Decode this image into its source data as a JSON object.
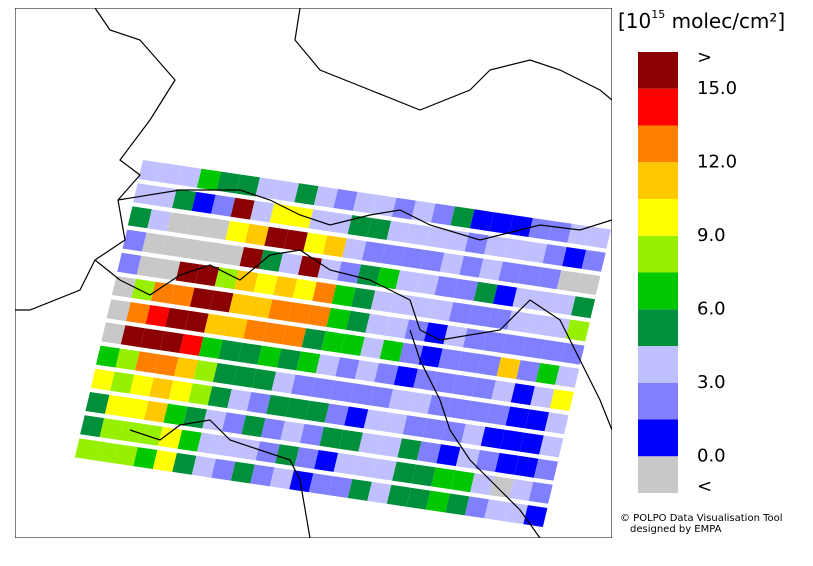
{
  "unit_prefix": "[10",
  "unit_exponent": "15",
  "unit_suffix": " molec/cm²]",
  "colorbar": {
    "bins": [
      0,
      1.5,
      3,
      4.5,
      6,
      7.5,
      9,
      10.5,
      12,
      13.5,
      15
    ],
    "colors": [
      "#0000ff",
      "#8080ff",
      "#c0c0ff",
      "#00903c",
      "#00c800",
      "#96f000",
      "#ffff00",
      "#ffc800",
      "#ff8000",
      "#ff0000"
    ],
    "under_color": "#c8c8c8",
    "over_color": "#8b0000",
    "under_label": "<",
    "over_label": ">",
    "ticks": [
      {
        "value": 0,
        "label": "0.0"
      },
      {
        "value": 3,
        "label": "3.0"
      },
      {
        "value": 6,
        "label": "6.0"
      },
      {
        "value": 9,
        "label": "9.0"
      },
      {
        "value": 12,
        "label": "12.0"
      },
      {
        "value": 15,
        "label": "15.0"
      }
    ]
  },
  "pixels": [
    [
      3.7,
      3.7,
      3.7,
      6.7,
      5.2,
      5.2,
      3.7,
      3.7,
      5.2,
      3.7,
      2.2,
      3.7,
      3.7,
      2.2,
      3.7,
      2.2,
      5.2,
      0.7,
      0.7,
      0.7,
      2.2,
      2.2,
      3.7,
      3.7
    ],
    [
      3.7,
      3.7,
      5.2,
      0.7,
      2.2,
      16,
      3.7,
      9.7,
      9.7,
      3.7,
      3.7,
      5.2,
      5.2,
      3.7,
      3.7,
      3.7,
      3.7,
      2.2,
      3.7,
      3.7,
      3.7,
      2.2,
      0.7,
      2.2
    ],
    [
      5.2,
      3.7,
      -1,
      -1,
      -1,
      9.7,
      11.2,
      16,
      16,
      9.7,
      11.2,
      3.7,
      2.2,
      2.2,
      2.2,
      2.2,
      3.7,
      2.2,
      3.7,
      2.2,
      2.2,
      2.2,
      -1,
      -1
    ],
    [
      2.2,
      -1,
      -1,
      -1,
      -1,
      -1,
      16,
      5.2,
      3.7,
      16,
      3.7,
      2.2,
      5.2,
      6.7,
      3.7,
      3.7,
      2.2,
      2.2,
      5.2,
      0.7,
      3.7,
      3.7,
      3.7,
      5.2
    ],
    [
      2.2,
      -1,
      -1,
      16,
      16,
      8.2,
      11.2,
      9.7,
      11.2,
      9.7,
      12.7,
      6.7,
      5.2,
      3.7,
      3.7,
      3.7,
      3.7,
      2.2,
      2.2,
      2.2,
      3.7,
      3.7,
      3.7,
      8.2
    ],
    [
      -1,
      8.2,
      12.7,
      12.7,
      16,
      16,
      11.2,
      11.2,
      12.7,
      12.7,
      12.7,
      6.7,
      5.2,
      3.7,
      3.7,
      2.2,
      0.7,
      3.7,
      2.2,
      2.2,
      2.2,
      2.2,
      2.2,
      2.2
    ],
    [
      -1,
      12.7,
      14.2,
      16,
      16,
      11.2,
      11.2,
      12.7,
      12.7,
      12.7,
      5.2,
      6.7,
      6.7,
      3.7,
      6.7,
      2.2,
      0.7,
      2.2,
      2.2,
      2.2,
      11.2,
      2.2,
      6.7,
      3.7
    ],
    [
      -1,
      16,
      16,
      16,
      14.2,
      6.7,
      5.2,
      5.2,
      6.7,
      5.2,
      6.7,
      3.7,
      2.2,
      3.7,
      2.2,
      0.7,
      2.2,
      2.2,
      2.2,
      2.2,
      3.7,
      0.7,
      3.7,
      9.7
    ],
    [
      6.7,
      8.2,
      12.7,
      12.7,
      11.2,
      8.2,
      5.2,
      5.2,
      5.2,
      3.7,
      2.2,
      2.2,
      2.2,
      2.2,
      2.2,
      3.7,
      3.7,
      2.2,
      2.2,
      2.2,
      2.2,
      0.7,
      0.7,
      3.7
    ],
    [
      9.7,
      8.2,
      9.7,
      11.2,
      9.7,
      8.2,
      5.2,
      3.7,
      2.2,
      5.2,
      5.2,
      5.2,
      2.2,
      0.7,
      3.7,
      3.7,
      2.2,
      2.2,
      2.2,
      3.7,
      0.7,
      0.7,
      0.7,
      3.7
    ],
    [
      5.2,
      9.7,
      9.7,
      11.2,
      6.7,
      5.2,
      3.7,
      2.2,
      5.2,
      2.2,
      3.7,
      2.2,
      5.2,
      5.2,
      3.7,
      3.7,
      5.2,
      2.2,
      0.7,
      3.7,
      2.2,
      0.7,
      0.7,
      2.2
    ],
    [
      5.2,
      8.2,
      8.2,
      8.2,
      9.7,
      6.7,
      3.7,
      3.7,
      3.7,
      2.2,
      5.2,
      2.2,
      0.7,
      3.7,
      3.7,
      3.7,
      5.2,
      5.2,
      6.7,
      6.7,
      3.7,
      -1,
      3.7,
      2.2
    ],
    [
      8.2,
      8.2,
      8.2,
      6.7,
      9.7,
      5.2,
      3.7,
      2.2,
      5.2,
      2.2,
      3.7,
      0.7,
      2.2,
      2.2,
      5.2,
      3.7,
      5.2,
      5.2,
      6.7,
      5.2,
      2.2,
      3.7,
      3.7,
      0.7
    ]
  ],
  "credit_line1": "© POLPO Data Visualisation Tool",
  "credit_line2": "designed by EMPA"
}
